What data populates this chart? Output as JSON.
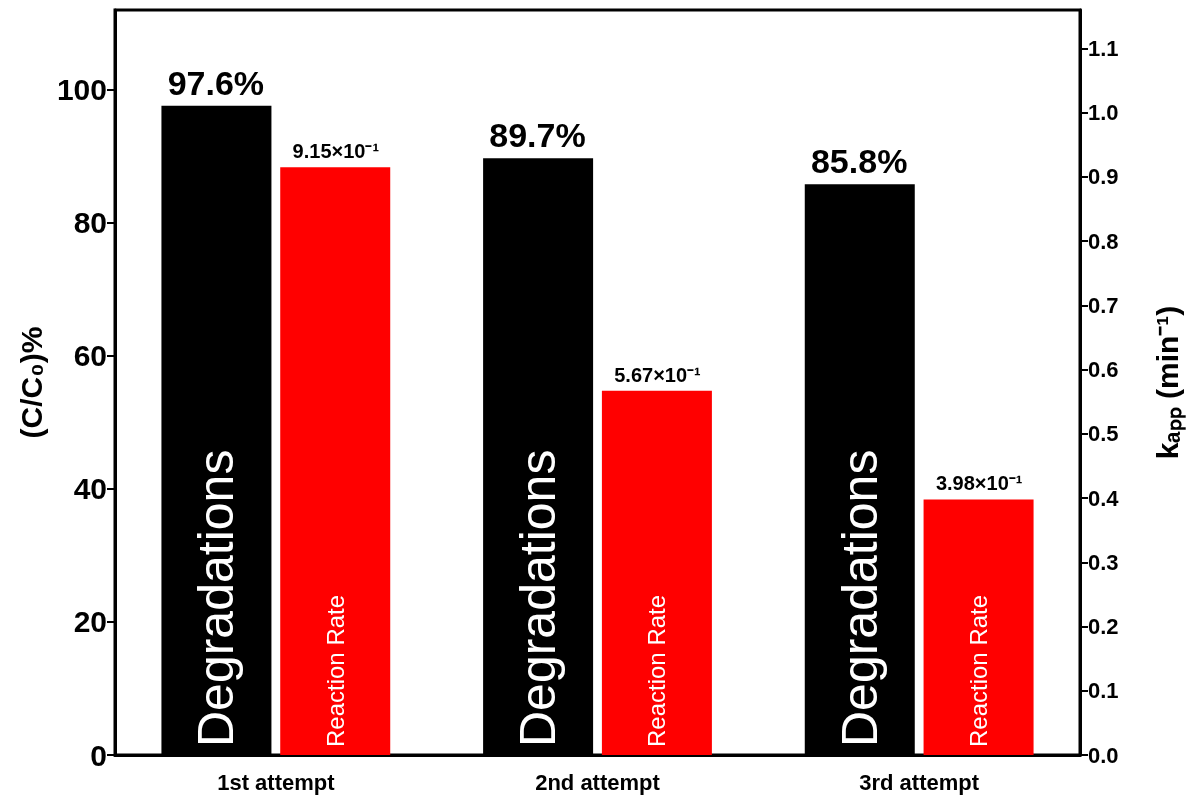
{
  "chart_data": {
    "type": "bar",
    "categories": [
      "1st attempt",
      "2nd attempt",
      "3rd attempt"
    ],
    "ylabel": "(C/C₀)%",
    "y2label": "kₐₚₚ (min⁻¹)",
    "series": [
      {
        "name": "Degradations",
        "color": "#000000",
        "values": [
          97.6,
          89.7,
          85.8
        ],
        "value_labels": [
          "97.6%",
          "89.7%",
          "85.8%"
        ]
      },
      {
        "name": "Reaction Rate",
        "color": "#ff0000",
        "axis": "y2",
        "values": [
          0.915,
          0.567,
          0.398
        ],
        "value_labels": [
          "9.15×10⁻¹",
          "5.67×10⁻¹",
          "3.98×10⁻¹"
        ]
      }
    ],
    "ylim": [
      0,
      112
    ],
    "yticks": [
      0,
      20,
      40,
      60,
      80,
      100
    ],
    "y2lim": [
      0,
      1.16
    ],
    "y2ticks": [
      {
        "value": 0,
        "label": "0.0"
      },
      0.1,
      0.2,
      0.3,
      0.4,
      0.5,
      0.6,
      0.7,
      0.8,
      0.9,
      {
        "value": 1,
        "label": "1.0"
      },
      1.1
    ],
    "grid": false,
    "legend": false
  }
}
